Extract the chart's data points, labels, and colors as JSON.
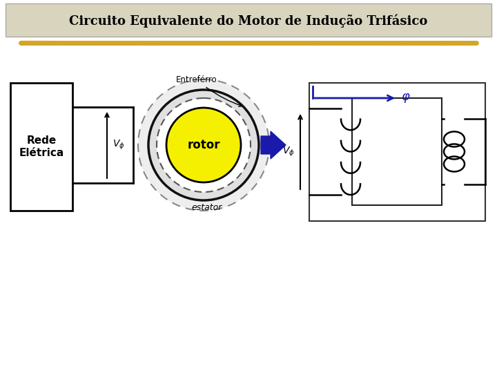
{
  "title": "Circuito Equivalente do Motor de Indução Trifásico",
  "title_bg_color": "#d8d4be",
  "title_font_color": "#000000",
  "title_fontsize": 13,
  "bg_color": "#ffffff",
  "gold_line_color": "#c8960a",
  "arrow_color": "#1a1aaa",
  "rotor_fill": "#f5f000",
  "rotor_text": "rotor",
  "estator_label": "estator",
  "entrerferro_label": "Entreférro",
  "rede_label": "Rede\nElétrica",
  "phi_label": "φ"
}
